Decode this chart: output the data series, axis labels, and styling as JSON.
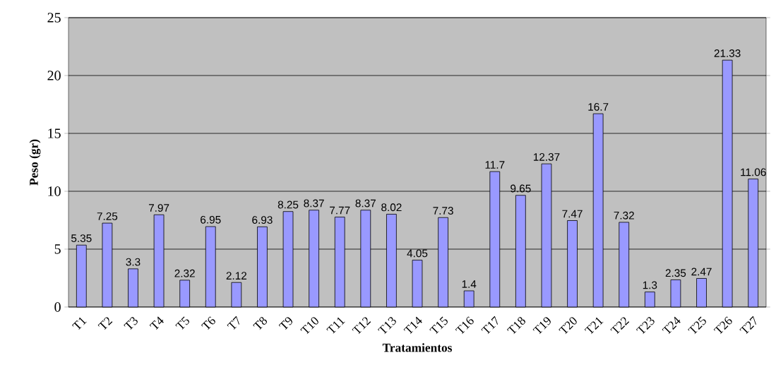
{
  "chart_data": {
    "type": "bar",
    "xlabel": "Tratamientos",
    "ylabel": "Peso (gr)",
    "categories": [
      "T1",
      "T2",
      "T3",
      "T4",
      "T5",
      "T6",
      "T7",
      "T8",
      "T9",
      "T10",
      "T11",
      "T12",
      "T13",
      "T14",
      "T15",
      "T16",
      "T17",
      "T18",
      "T19",
      "T20",
      "T21",
      "T22",
      "T23",
      "T24",
      "T25",
      "T26",
      "T27"
    ],
    "values": [
      5.35,
      7.25,
      3.3,
      7.97,
      2.32,
      6.95,
      2.12,
      6.93,
      8.25,
      8.37,
      7.77,
      8.37,
      8.02,
      4.05,
      7.73,
      1.4,
      11.7,
      9.65,
      12.37,
      7.47,
      16.7,
      7.32,
      1.3,
      2.35,
      2.47,
      21.33,
      11.06
    ],
    "color": "#9999ff",
    "ylim": [
      0,
      25
    ],
    "yticks": [
      0,
      5,
      10,
      15,
      20,
      25
    ],
    "grid": "y",
    "data_labels": true
  }
}
